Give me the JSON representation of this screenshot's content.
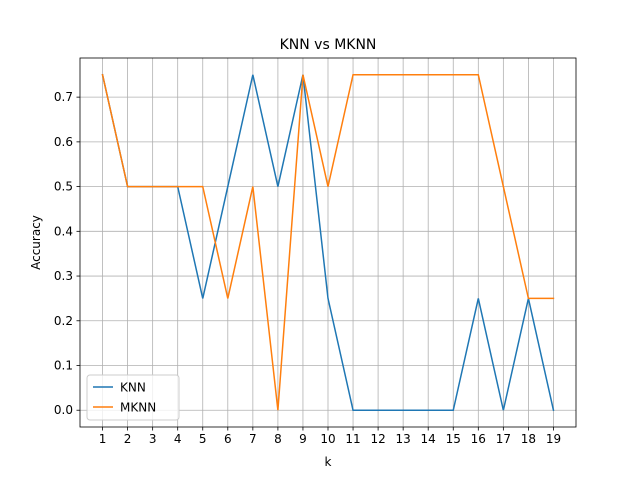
{
  "chart_data": {
    "type": "line",
    "title": "KNN vs MKNN",
    "xlabel": "k",
    "ylabel": "Accuracy",
    "x": [
      1,
      2,
      3,
      4,
      5,
      6,
      7,
      8,
      9,
      10,
      11,
      12,
      13,
      14,
      15,
      16,
      17,
      18,
      19
    ],
    "xlim": [
      0.1,
      19.9
    ],
    "ylim": [
      -0.0375,
      0.7875
    ],
    "yticks": [
      0.0,
      0.1,
      0.2,
      0.3,
      0.4,
      0.5,
      0.6,
      0.7
    ],
    "ytick_labels": [
      "0.0",
      "0.1",
      "0.2",
      "0.3",
      "0.4",
      "0.5",
      "0.6",
      "0.7"
    ],
    "grid": true,
    "legend_position": "lower-left",
    "series": [
      {
        "name": "KNN",
        "color": "#1f77b4",
        "values": [
          0.75,
          0.5,
          0.5,
          0.5,
          0.25,
          0.5,
          0.75,
          0.5,
          0.75,
          0.25,
          0.0,
          0.0,
          0.0,
          0.0,
          0.0,
          0.25,
          0.0,
          0.25,
          0.0
        ]
      },
      {
        "name": "MKNN",
        "color": "#ff7f0e",
        "values": [
          0.75,
          0.5,
          0.5,
          0.5,
          0.5,
          0.25,
          0.5,
          0.0,
          0.75,
          0.5,
          0.75,
          0.75,
          0.75,
          0.75,
          0.75,
          0.75,
          0.5,
          0.25,
          0.25
        ]
      }
    ]
  }
}
